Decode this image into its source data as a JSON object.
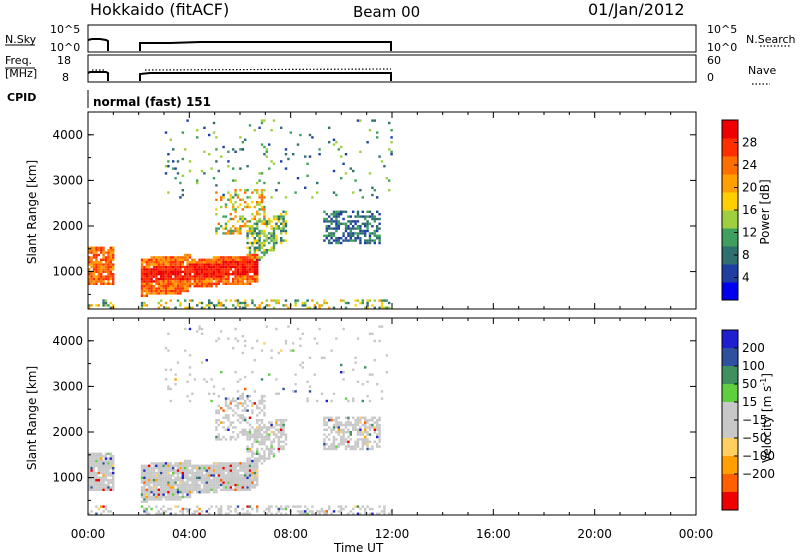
{
  "header": {
    "station": "Hokkaido (fitACF)",
    "beam": "Beam 00",
    "date": "01/Jan/2012"
  },
  "top_panels": {
    "nsky_label": "N.Sky",
    "nsky_ticks": [
      "10^5",
      "10^0"
    ],
    "nsky_right_ticks": [
      "10^5",
      "10^0"
    ],
    "nsearch_label": "N.Search",
    "freq_label_1": "Freq.",
    "freq_label_2": "[MHz]",
    "freq_ticks": [
      "18",
      "8"
    ],
    "nave_ticks": [
      "60",
      "0"
    ],
    "nave_label": "Nave",
    "cpid_label": "CPID",
    "cpid_value": "normal (fast) 151"
  },
  "colors": {
    "power_scale": [
      "#0000ee",
      "#1f3fa0",
      "#2f6f6f",
      "#3f9f5f",
      "#9fcf3f",
      "#ffcf00",
      "#ff9f00",
      "#ff6f00",
      "#ff2f00",
      "#ee0000"
    ],
    "velocity_scale": [
      "#ee0000",
      "#ff5f00",
      "#ff9f00",
      "#ffcf5f",
      "#c8c8c8",
      "#c8c8c8",
      "#5fcf3f",
      "#3f8f5f",
      "#2f4fa0",
      "#1f1fcf"
    ]
  },
  "chart_data": [
    {
      "type": "heatmap",
      "title": "Power",
      "xlabel": "Time UT",
      "ylabel": "Slant Range [km]",
      "x_ticks": [
        "00:00",
        "04:00",
        "08:00",
        "12:00",
        "16:00",
        "20:00",
        "00:00"
      ],
      "xlim_hours": [
        0,
        24
      ],
      "y_ticks": [
        1000,
        2000,
        3000,
        4000
      ],
      "ylim": [
        180,
        4500
      ],
      "colorbar_label": "Power [dB]",
      "colorbar_ticks": [
        4,
        8,
        12,
        16,
        20,
        24,
        28
      ],
      "colorbar_range": [
        0,
        32
      ],
      "data_extent_hours": [
        0,
        12
      ],
      "data_gap_hours": [
        1.0,
        2.0
      ]
    },
    {
      "type": "heatmap",
      "title": "Velocity",
      "xlabel": "Time UT",
      "ylabel": "Slant Range [km]",
      "x_ticks": [
        "00:00",
        "04:00",
        "08:00",
        "12:00",
        "16:00",
        "20:00",
        "00:00"
      ],
      "xlim_hours": [
        0,
        24
      ],
      "y_ticks": [
        1000,
        2000,
        3000,
        4000
      ],
      "ylim": [
        180,
        4500
      ],
      "colorbar_label": "Velocity [m s",
      "colorbar_label_sup": "-1",
      "colorbar_label_end": "]",
      "colorbar_ticks": [
        -200,
        -100,
        -50,
        -15,
        15,
        50,
        100,
        200
      ],
      "data_extent_hours": [
        0,
        12
      ],
      "data_gap_hours": [
        1.0,
        2.0
      ]
    }
  ]
}
